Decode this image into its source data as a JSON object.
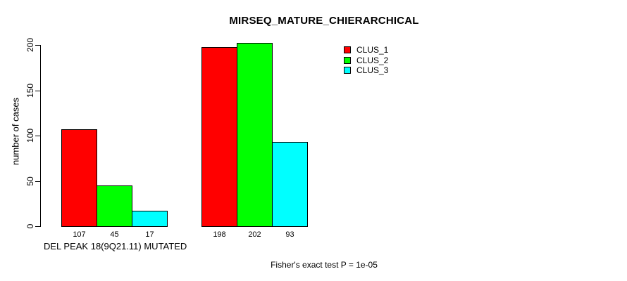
{
  "chart_data": {
    "type": "bar",
    "title": "MIRSEQ_MATURE_CHIERARCHICAL",
    "categories": [
      "DEL PEAK 18(9Q21.11) MUTATED",
      ""
    ],
    "series": [
      {
        "name": "CLUS_1",
        "color": "#ff0000",
        "values": [
          107,
          198
        ]
      },
      {
        "name": "CLUS_2",
        "color": "#00ff00",
        "values": [
          45,
          202
        ]
      },
      {
        "name": "CLUS_3",
        "color": "#00ffff",
        "values": [
          17,
          93
        ]
      }
    ],
    "xlabel": "",
    "ylabel": "number of cases",
    "ylim": [
      0,
      200
    ],
    "yticks": [
      0,
      50,
      100,
      150,
      200
    ],
    "show_bar_values": true,
    "grid": false,
    "legend_position": "top-right",
    "annotation": "Fisher's exact test P = 1e-05"
  }
}
